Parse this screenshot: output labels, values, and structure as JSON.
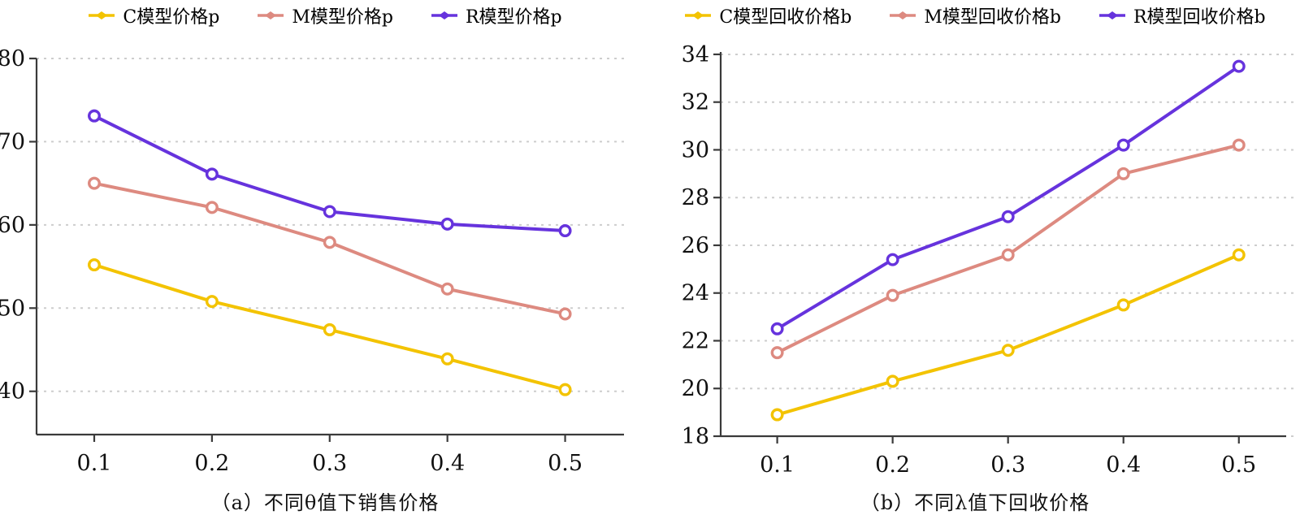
{
  "background_color": "#ffffff",
  "text_color": "#101010",
  "grid_color": "#cdcdcd",
  "axis_color": "#3a3a3a",
  "chart_data": [
    {
      "type": "line",
      "title": "（a）不同θ值下销售价格",
      "x": [
        0.1,
        0.2,
        0.3,
        0.4,
        0.5
      ],
      "xticks": [
        "0.1",
        "0.2",
        "0.3",
        "0.4",
        "0.5"
      ],
      "yticks": [
        40,
        50,
        60,
        70,
        80
      ],
      "xlim": [
        0.051,
        0.55
      ],
      "ylim": [
        34.8,
        80
      ],
      "grid": "horizontal-dashed",
      "legend_position": "top",
      "series": [
        {
          "name": "C模型价格p",
          "color": "#F3C300",
          "values": [
            55.2,
            50.8,
            47.4,
            43.9,
            40.2
          ]
        },
        {
          "name": "M模型价格p",
          "color": "#DD8A80",
          "values": [
            65.0,
            62.1,
            57.9,
            52.3,
            49.3
          ]
        },
        {
          "name": "R模型价格p",
          "color": "#6633DD",
          "values": [
            73.1,
            66.1,
            61.6,
            60.1,
            59.3
          ]
        }
      ]
    },
    {
      "type": "line",
      "title": "（b）不同λ值下回收价格",
      "x": [
        0.1,
        0.2,
        0.3,
        0.4,
        0.5
      ],
      "xticks": [
        "0.1",
        "0.2",
        "0.3",
        "0.4",
        "0.5"
      ],
      "yticks": [
        18,
        20,
        22,
        24,
        26,
        28,
        30,
        32,
        34
      ],
      "xlim": [
        0.051,
        0.541
      ],
      "ylim": [
        18,
        34.1
      ],
      "grid": "horizontal-dashed",
      "legend_position": "top",
      "series": [
        {
          "name": "C模型回收价格b",
          "color": "#F3C300",
          "values": [
            18.9,
            20.3,
            21.6,
            23.5,
            25.6
          ]
        },
        {
          "name": "M模型回收价格b",
          "color": "#DD8A80",
          "values": [
            21.5,
            23.9,
            25.6,
            29.0,
            30.2
          ]
        },
        {
          "name": "R模型回收价格b",
          "color": "#6633DD",
          "values": [
            22.5,
            25.4,
            27.2,
            30.2,
            33.5
          ]
        }
      ]
    }
  ]
}
